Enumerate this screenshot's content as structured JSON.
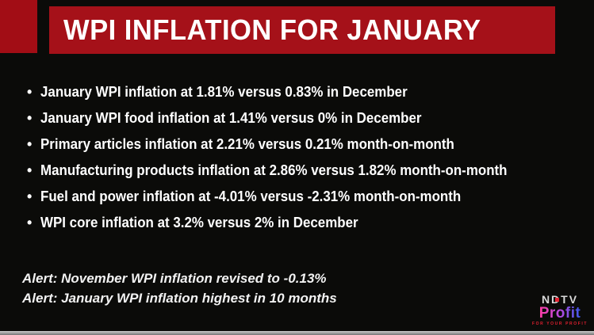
{
  "colors": {
    "background": "#0b0b09",
    "accentRed": "#a20d15",
    "headerRed": "#a51119",
    "textWhite": "#ffffff",
    "taglineRed": "#e02030",
    "profitGradientStart": "#ff3ea5",
    "profitGradientMid": "#b84ae0",
    "profitGradientEnd": "#3a57e8",
    "footerStripTop": "#cccccc",
    "footerStripBottom": "#777777"
  },
  "header": {
    "title": "WPI INFLATION FOR JANUARY"
  },
  "bullet_glyph": "•",
  "bullets": [
    "January WPI inflation at 1.81% versus 0.83% in December",
    "January WPI food inflation at 1.41% versus 0% in December",
    "Primary articles inflation at 2.21% versus 0.21% month-on-month",
    "Manufacturing products inflation at 2.86% versus 1.82% month-on-month",
    "Fuel and power inflation at -4.01% versus -2.31% month-on-month",
    "WPI core inflation at 3.2% versus 2% in December"
  ],
  "alerts": [
    "Alert: November WPI inflation revised to -0.13%",
    "Alert: January WPI inflation highest in 10 months"
  ],
  "logo": {
    "brand": "NDTV",
    "product": "Profit",
    "tagline": "FOR YOUR PROFIT"
  }
}
